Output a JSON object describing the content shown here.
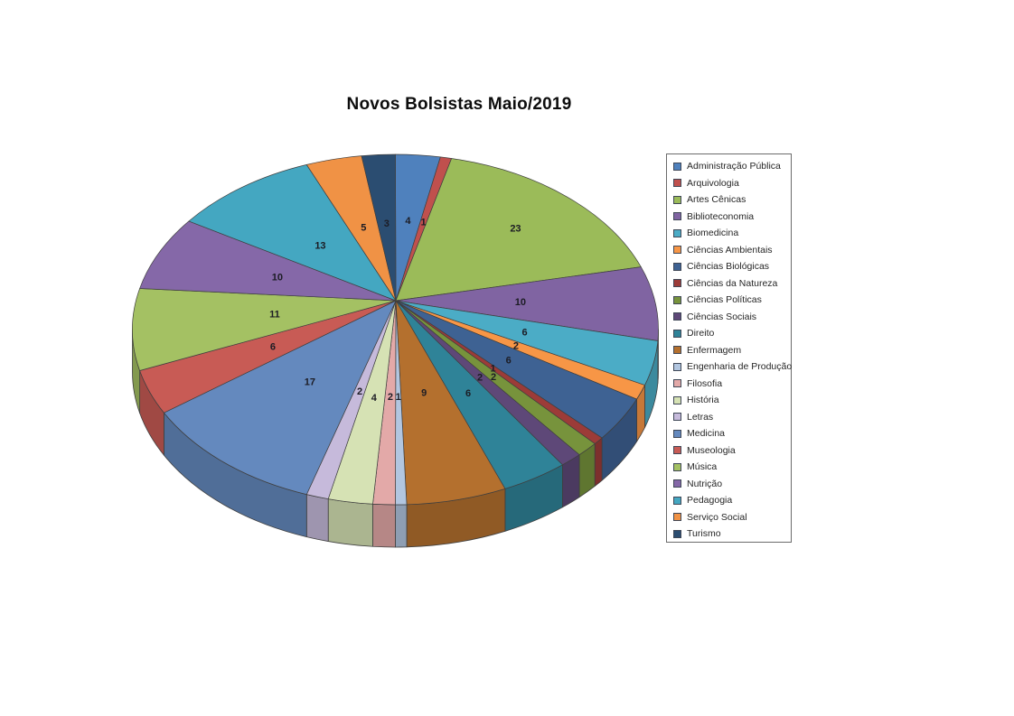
{
  "page": {
    "background": "#ffffff"
  },
  "chart_data": {
    "type": "pie",
    "is_3d": true,
    "title": "Novos Bolsistas Maio/2019",
    "legend_position": "right",
    "data_labels": "values",
    "start_angle_deg": 0,
    "direction": "clockwise",
    "total": 146,
    "categories": [
      "Administração Pública",
      "Arquivologia",
      "Artes Cênicas",
      "Biblioteconomia",
      "Biomedicina",
      "Ciências Ambientais",
      "Ciências Biológicas",
      "Ciências da Natureza",
      "Ciências Políticas",
      "Ciências Sociais",
      "Direito",
      "Enfermagem",
      "Engenharia de Produção",
      "Filosofia",
      "História",
      "Letras",
      "Medicina",
      "Museologia",
      "Música",
      "Nutrição",
      "Pedagogia",
      "Serviço Social",
      "Turismo"
    ],
    "values": [
      4,
      1,
      23,
      10,
      6,
      2,
      6,
      1,
      2,
      2,
      6,
      9,
      1,
      2,
      4,
      2,
      17,
      6,
      11,
      10,
      13,
      5,
      3
    ],
    "colors": [
      "#4F81BD",
      "#C0504D",
      "#9BBB59",
      "#8064A2",
      "#4BACC6",
      "#F79646",
      "#3E6293",
      "#9C3B38",
      "#77933C",
      "#5E4878",
      "#2F8398",
      "#B4702E",
      "#B2C6E0",
      "#E3A9A8",
      "#D6E2B4",
      "#C6BADB",
      "#6489BE",
      "#C85B55",
      "#A4C163",
      "#8568A8",
      "#44A7C1",
      "#F09245",
      "#2B4D71"
    ],
    "title_color": "#0d0d0d",
    "label_color": "#1c1c24",
    "legend_border_color": "#6b6b6b"
  }
}
